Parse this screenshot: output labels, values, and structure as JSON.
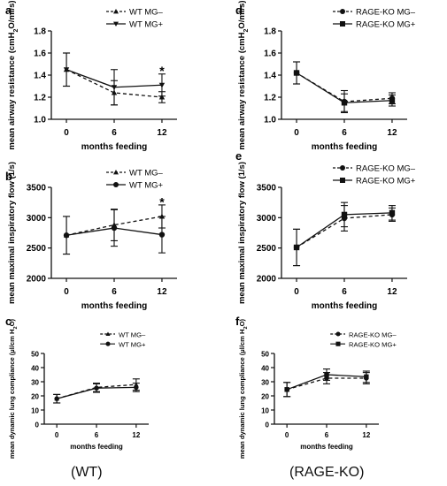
{
  "captions": {
    "left": "(WT)",
    "right": "(RAGE-KO)"
  },
  "chart_data": [
    {
      "panel": "a",
      "type": "line",
      "xlabel": "months feeding",
      "ylabel": "mean airway resistance (cmH₂O/ml/s)",
      "ylabel_parts": [
        "mean airway resistance (cmH",
        "2",
        "O/ml/s)"
      ],
      "x": [
        0,
        6,
        12
      ],
      "xticks": [
        "0",
        "6",
        "12"
      ],
      "ylim": [
        1.0,
        1.8
      ],
      "yticks": [
        "1.0",
        "1.2",
        "1.4",
        "1.6",
        "1.8"
      ],
      "legend": "top-right",
      "series": [
        {
          "name": "WT MG–",
          "marker": "triangle",
          "dash": true,
          "values": [
            1.45,
            1.24,
            1.2
          ],
          "err": [
            0.15,
            0.11,
            0.05
          ]
        },
        {
          "name": "WT MG+",
          "marker": "triangle-down",
          "dash": false,
          "values": [
            1.45,
            1.29,
            1.31
          ],
          "err": [
            0.15,
            0.16,
            0.1
          ]
        }
      ],
      "annotations": [
        {
          "text": "*",
          "x": 12,
          "y": 1.44
        }
      ]
    },
    {
      "panel": "d",
      "type": "line",
      "xlabel": "months feeding",
      "ylabel": "mean airway resistance (cmH₂O/ml/s)",
      "ylabel_parts": [
        "mean airway resistance (cmH",
        "2",
        "O/ml/s)"
      ],
      "x": [
        0,
        6,
        12
      ],
      "xticks": [
        "0",
        "6",
        "12"
      ],
      "ylim": [
        1.0,
        1.8
      ],
      "yticks": [
        "1.0",
        "1.2",
        "1.4",
        "1.6",
        "1.8"
      ],
      "legend": "top-right",
      "series": [
        {
          "name": "RAGE-KO MG–",
          "marker": "circle",
          "dash": true,
          "values": [
            1.42,
            1.16,
            1.19
          ],
          "err": [
            0.1,
            0.1,
            0.05
          ]
        },
        {
          "name": "RAGE-KO MG+",
          "marker": "square",
          "dash": false,
          "values": [
            1.42,
            1.15,
            1.17
          ],
          "err": [
            0.1,
            0.08,
            0.05
          ]
        }
      ],
      "annotations": []
    },
    {
      "panel": "b",
      "type": "line",
      "xlabel": "months feeding",
      "ylabel": "mean maximal inspiratory flow (1/s)",
      "ylabel_parts": [
        "mean maximal inspiratory flow (1/s)"
      ],
      "x": [
        0,
        6,
        12
      ],
      "xticks": [
        "0",
        "6",
        "12"
      ],
      "ylim": [
        2000,
        3500
      ],
      "yticks": [
        "2000",
        "2500",
        "3000",
        "3500"
      ],
      "legend": "top-right",
      "series": [
        {
          "name": "WT MG–",
          "marker": "triangle",
          "dash": true,
          "values": [
            2710,
            2880,
            3020
          ],
          "err": [
            310,
            260,
            190
          ]
        },
        {
          "name": "WT MG+",
          "marker": "circle",
          "dash": false,
          "values": [
            2710,
            2830,
            2720
          ],
          "err": [
            310,
            300,
            300
          ]
        }
      ],
      "annotations": [
        {
          "text": "*",
          "x": 12,
          "y": 3260
        }
      ]
    },
    {
      "panel": "e",
      "type": "line",
      "xlabel": "months feeding",
      "ylabel": "mean maximal inspiratory flow (1/s)",
      "ylabel_parts": [
        "mean maximal inspiratory flow (1/s)"
      ],
      "x": [
        0,
        6,
        12
      ],
      "xticks": [
        "0",
        "6",
        "12"
      ],
      "ylim": [
        2000,
        3500
      ],
      "yticks": [
        "2000",
        "2500",
        "3000",
        "3500"
      ],
      "legend": "top-right",
      "series": [
        {
          "name": "RAGE-KO MG–",
          "marker": "circle",
          "dash": true,
          "values": [
            2510,
            2990,
            3050
          ],
          "err": [
            300,
            210,
            110
          ]
        },
        {
          "name": "RAGE-KO MG+",
          "marker": "square",
          "dash": false,
          "values": [
            2510,
            3050,
            3080
          ],
          "err": [
            300,
            200,
            120
          ]
        }
      ],
      "annotations": []
    },
    {
      "panel": "c",
      "type": "line",
      "xlabel": "months feeding",
      "ylabel": "mean dynamic lung compliance (µl/cm H₂O)",
      "ylabel_parts": [
        "mean dynamic lung compliance (µl/cm H",
        "2",
        "O)"
      ],
      "x": [
        0,
        6,
        12
      ],
      "xticks": [
        "0",
        "6",
        "12"
      ],
      "ylim": [
        0,
        50
      ],
      "yticks": [
        "0",
        "10",
        "20",
        "30",
        "40",
        "50"
      ],
      "legend": "top-right",
      "series": [
        {
          "name": "WT MG–",
          "marker": "triangle",
          "dash": true,
          "values": [
            18,
            26,
            28
          ],
          "err": [
            3,
            3,
            4
          ]
        },
        {
          "name": "WT MG+",
          "marker": "circle",
          "dash": false,
          "values": [
            18,
            25.5,
            26
          ],
          "err": [
            3,
            3,
            3
          ]
        }
      ],
      "annotations": []
    },
    {
      "panel": "f",
      "type": "line",
      "xlabel": "months feeding",
      "ylabel": "mean dynamic lung compliance (µl/cm H₂O)",
      "ylabel_parts": [
        "mean dynamic lung compliance (µl/cm H",
        "2",
        "O)"
      ],
      "x": [
        0,
        6,
        12
      ],
      "xticks": [
        "0",
        "6",
        "12"
      ],
      "ylim": [
        0,
        50
      ],
      "yticks": [
        "0",
        "10",
        "20",
        "30",
        "40",
        "50"
      ],
      "legend": "top-right",
      "series": [
        {
          "name": "RAGE-KO MG–",
          "marker": "circle",
          "dash": true,
          "values": [
            24.5,
            32.5,
            32.5
          ],
          "err": [
            5,
            4,
            4
          ]
        },
        {
          "name": "RAGE-KO MG+",
          "marker": "square",
          "dash": false,
          "values": [
            24.5,
            35,
            33.5
          ],
          "err": [
            5,
            4,
            4
          ]
        }
      ],
      "annotations": []
    }
  ]
}
